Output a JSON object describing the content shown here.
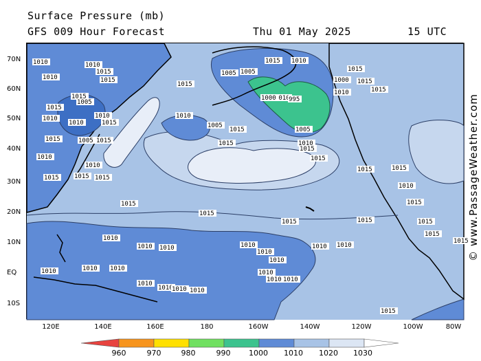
{
  "header": {
    "title": "Surface Pressure (mb)",
    "subtitle": "GFS 009 Hour Forecast",
    "valid_date": "Thu 01 May 2025",
    "valid_time": "15 UTC"
  },
  "credit": "© www.PassageWeather.com",
  "map": {
    "latitude_labels": [
      "70N",
      "60N",
      "50N",
      "40N",
      "30N",
      "20N",
      "10N",
      "EQ",
      "10S"
    ],
    "longitude_labels": [
      "120E",
      "140E",
      "160E",
      "180",
      "160W",
      "140W",
      "120W",
      "100W",
      "80W"
    ],
    "isobar_labels": [
      "1010",
      "1010",
      "1015",
      "1015",
      "1015",
      "1005",
      "1015",
      "1010",
      "1005",
      "1000",
      "1010",
      "1010",
      "1015",
      "1015",
      "1015",
      "1010",
      "1015",
      "1005",
      "1015",
      "1010",
      "1015",
      "1010",
      "1005",
      "1015",
      "1010",
      "1015",
      "1010",
      "1005",
      "1015",
      "1000",
      "995",
      "1005",
      "1010",
      "1015",
      "1015",
      "1015",
      "1010",
      "1015",
      "1015",
      "1015",
      "1015",
      "1015",
      "1015",
      "1015",
      "1010",
      "1015",
      "1015",
      "1010",
      "1015",
      "1015",
      "1015",
      "1010",
      "1010",
      "1010",
      "1010",
      "1010",
      "1010",
      "1010",
      "1010",
      "1010",
      "1010",
      "1010",
      "1010",
      "1010",
      "1010",
      "1010",
      "1010",
      "1010",
      "1010",
      "1015",
      "1015"
    ]
  },
  "legend": {
    "labels": [
      "960",
      "970",
      "980",
      "990",
      "1000",
      "1010",
      "1020",
      "1030"
    ],
    "colors": [
      "#e8433f",
      "#f7941d",
      "#ffe000",
      "#70e060",
      "#3cc38e",
      "#5f8bd6",
      "#a8c3e6",
      "#dce6f4",
      "#ffffff"
    ]
  }
}
